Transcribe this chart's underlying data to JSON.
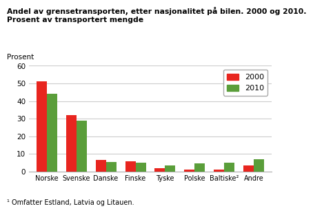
{
  "title_line1": "Andel av grensetransporten, etter nasjonalitet på bilen. 2000 og 2010.",
  "title_line2": "Prosent av transportert mengde",
  "ylabel": "Prosent",
  "categories": [
    "Norske",
    "Svenske",
    "Danske",
    "Finske",
    "Tyske",
    "Polske",
    "Baltiske²",
    "Andre"
  ],
  "values_2000": [
    51,
    32,
    6.5,
    6,
    2,
    1,
    1,
    3.5
  ],
  "values_2010": [
    44,
    29,
    5.5,
    5,
    3.5,
    4.5,
    5,
    7
  ],
  "color_2000": "#e8251f",
  "color_2010": "#5a9e3a",
  "ylim": [
    0,
    60
  ],
  "yticks": [
    0,
    10,
    20,
    30,
    40,
    50,
    60
  ],
  "legend_labels": [
    "2000",
    "2010"
  ],
  "footnote": "¹ Omfatter Estland, Latvia og Litauen.",
  "background_color": "#ffffff",
  "grid_color": "#cccccc"
}
